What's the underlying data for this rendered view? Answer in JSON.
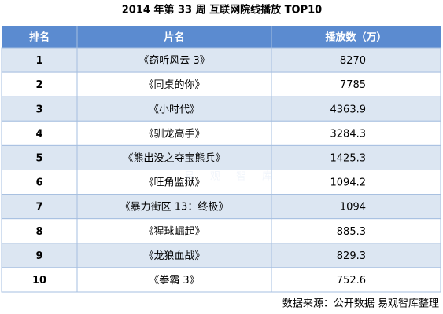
{
  "title": "2014 年第 33 周 互联网院线播放 TOP10",
  "table": {
    "header": [
      "排名",
      "片名",
      "播放数（万）"
    ],
    "rows": [
      [
        "1",
        "《窃听风云 3》",
        "8270"
      ],
      [
        "2",
        "《同桌的你》",
        "7785"
      ],
      [
        "3",
        "《小时代》",
        "4363.9"
      ],
      [
        "4",
        "《驯龙高手》",
        "3284.3"
      ],
      [
        "5",
        "《熊出没之夺宝熊兵》",
        "1425.3"
      ],
      [
        "6",
        "《旺角监狱》",
        "1094.2"
      ],
      [
        "7",
        "《暴力街区 13：终极》",
        "1094"
      ],
      [
        "8",
        "《猩球崛起》",
        "885.3"
      ],
      [
        "9",
        "《龙狼血战》",
        "829.3"
      ],
      [
        "10",
        "《拳霸 3》",
        "752.6"
      ]
    ]
  },
  "watermark": "易观智库",
  "source": "数据来源：公开数据 易观智库整理"
}
